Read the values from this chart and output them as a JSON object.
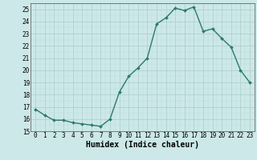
{
  "x": [
    0,
    1,
    2,
    3,
    4,
    5,
    6,
    7,
    8,
    9,
    10,
    11,
    12,
    13,
    14,
    15,
    16,
    17,
    18,
    19,
    20,
    21,
    22,
    23
  ],
  "y": [
    16.8,
    16.3,
    15.9,
    15.9,
    15.7,
    15.6,
    15.5,
    15.4,
    16.0,
    18.2,
    19.5,
    20.2,
    21.0,
    23.8,
    24.3,
    25.1,
    24.9,
    25.2,
    23.2,
    23.4,
    22.6,
    21.9,
    20.0,
    19.0
  ],
  "xlabel": "Humidex (Indice chaleur)",
  "xlim": [
    -0.5,
    23.5
  ],
  "ylim": [
    15,
    25.5
  ],
  "yticks": [
    15,
    16,
    17,
    18,
    19,
    20,
    21,
    22,
    23,
    24,
    25
  ],
  "xticks": [
    0,
    1,
    2,
    3,
    4,
    5,
    6,
    7,
    8,
    9,
    10,
    11,
    12,
    13,
    14,
    15,
    16,
    17,
    18,
    19,
    20,
    21,
    22,
    23
  ],
  "line_color": "#2d7a6a",
  "marker_size": 2.0,
  "bg_color": "#cce8e8",
  "grid_major_color": "#aacccc",
  "grid_minor_color": "#bbdddd",
  "line_width": 1.0,
  "tick_fontsize": 5.5,
  "xlabel_fontsize": 7.0
}
